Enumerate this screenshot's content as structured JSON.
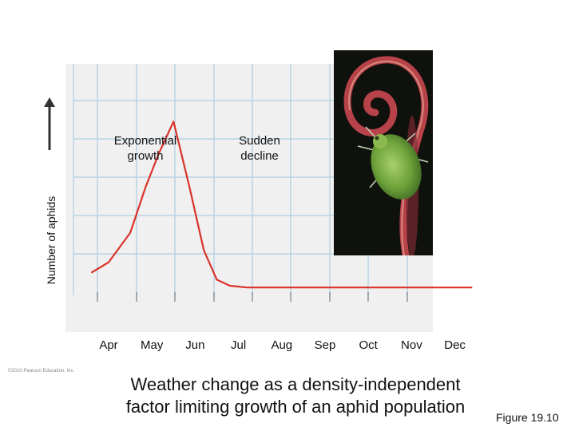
{
  "chart_data": {
    "type": "line",
    "ylabel": "Number of aphids",
    "xlabel": "",
    "categories": [
      "Apr",
      "May",
      "Jun",
      "Jul",
      "Aug",
      "Sep",
      "Oct",
      "Nov",
      "Dec"
    ],
    "series": [
      {
        "x": [
          3.6,
          4.0,
          4.5,
          4.85,
          5.15,
          5.5,
          5.87,
          6.2,
          6.5,
          6.8,
          7.2,
          7.7,
          8,
          9,
          10,
          11,
          12,
          12.4
        ],
        "y": [
          0.13,
          0.19,
          0.36,
          0.62,
          0.81,
          1.0,
          0.62,
          0.26,
          0.09,
          0.055,
          0.045,
          0.045,
          0.045,
          0.045,
          0.045,
          0.045,
          0.045,
          0.045
        ],
        "color": "#d9332b"
      }
    ],
    "ylim": [
      0,
      1.1
    ],
    "grid": true,
    "annotations": [
      {
        "text": "Exponential\ngrowth"
      },
      {
        "text": "Sudden\ndecline"
      }
    ]
  },
  "caption": "Weather change as a density-independent\nfactor limiting growth of an aphid population",
  "figure_label": "Figure 19.10",
  "copyright": "©2010 Pearson Education, Inc.",
  "colors": {
    "plot_bg": "#f0f0f0",
    "grid": "#b9d4e3",
    "curve": "#d9332b",
    "axis_arrow": "#333333"
  },
  "photo": {
    "subject": "green-aphid-on-red-stem",
    "icon": "aphid-photo"
  }
}
